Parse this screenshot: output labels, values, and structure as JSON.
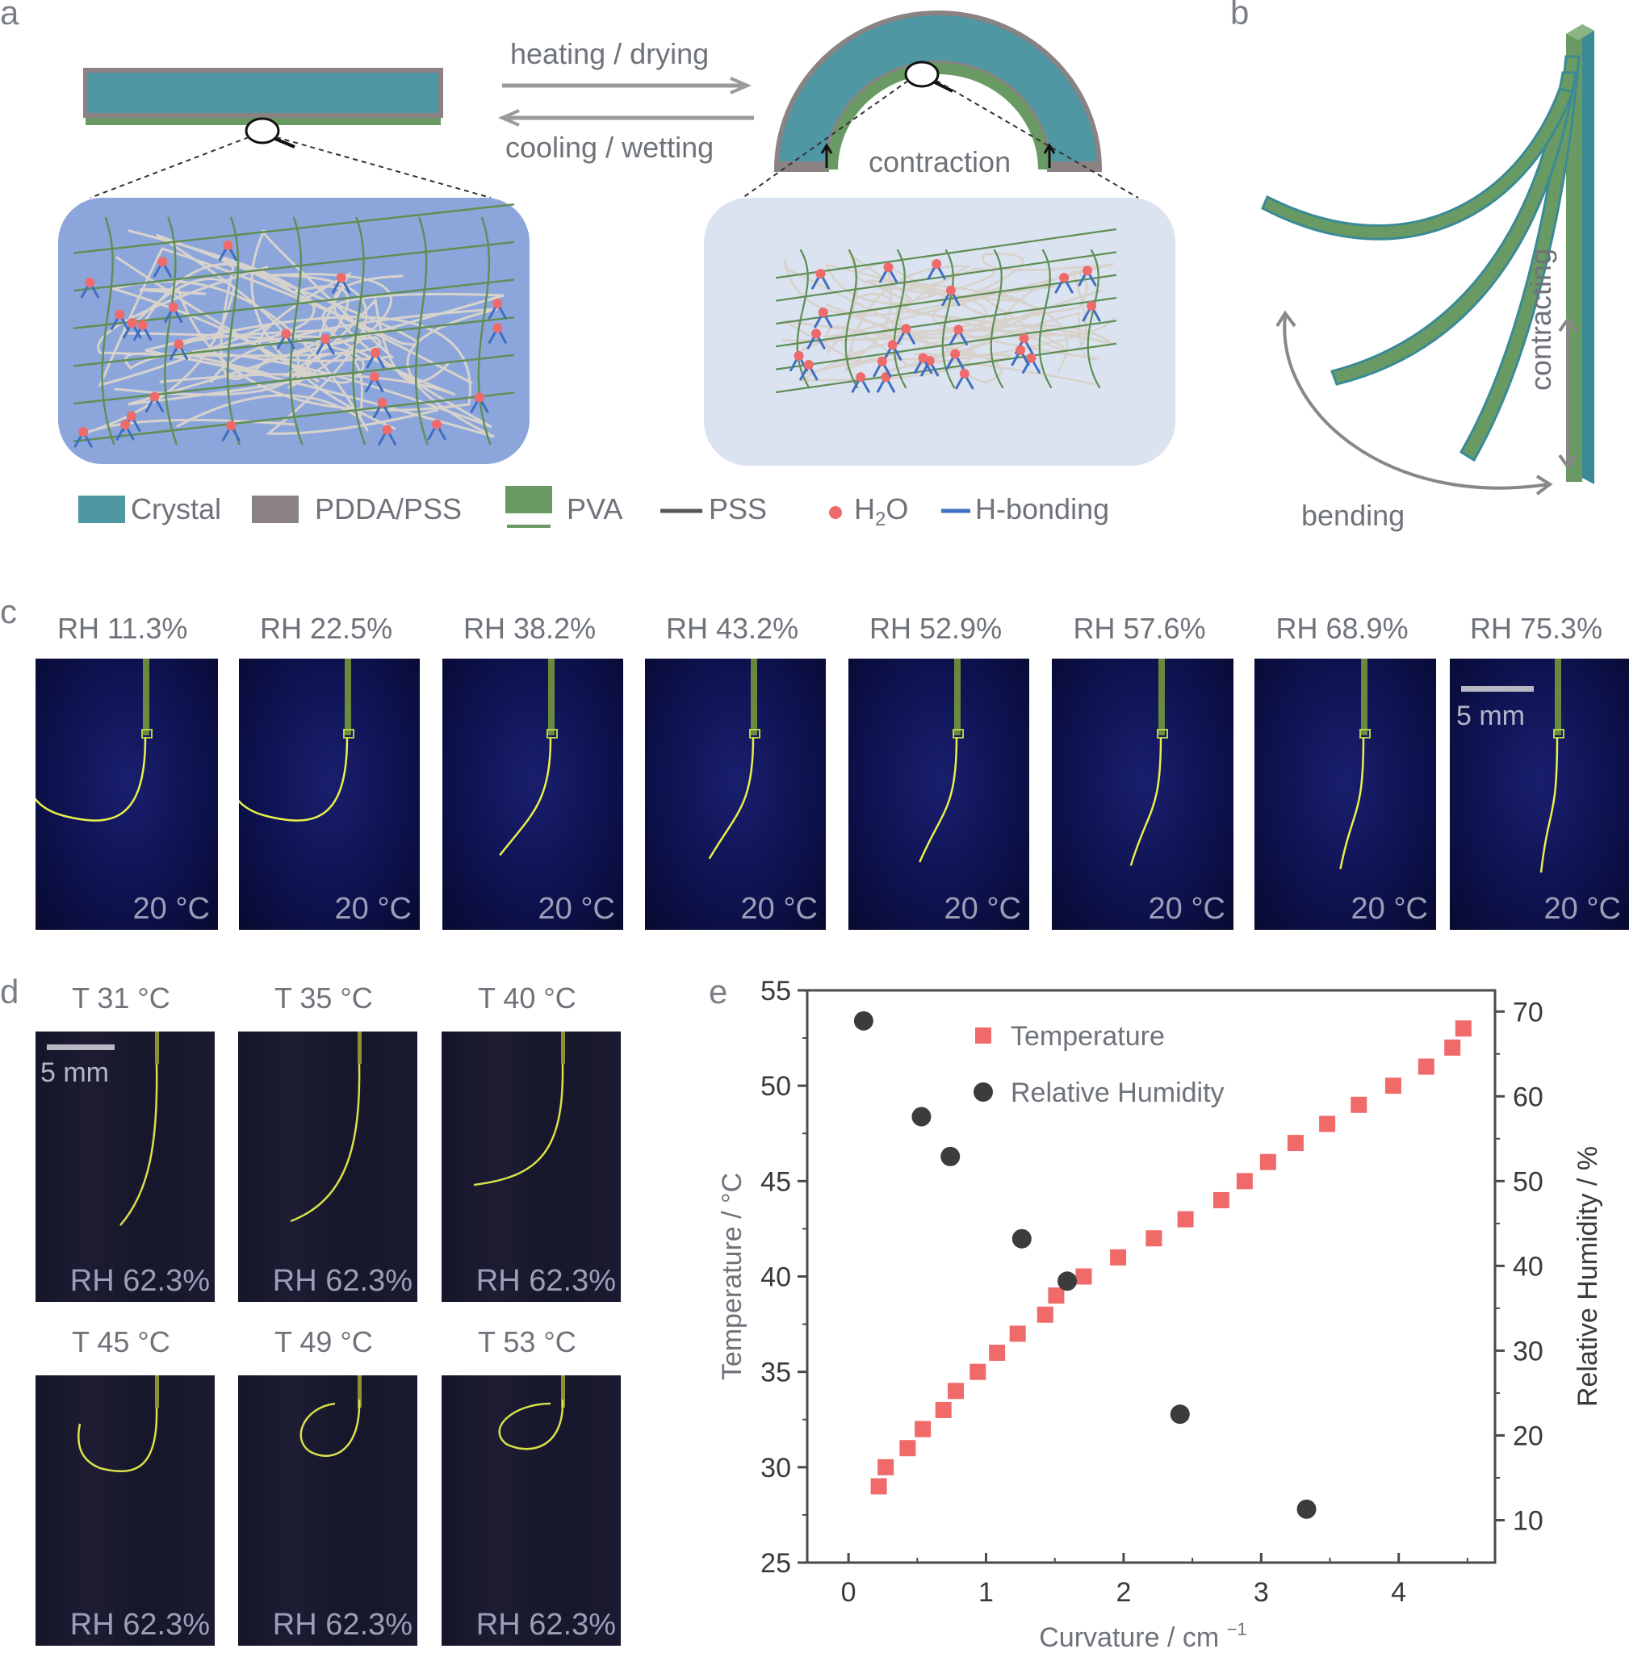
{
  "panel_labels": {
    "a": "a",
    "b": "b",
    "c": "c",
    "d": "d",
    "e": "e"
  },
  "panel_a": {
    "arrow_top": "heating / drying",
    "arrow_bottom": "cooling / wetting",
    "contraction": "contraction",
    "legend": {
      "crystal": "Crystal",
      "pdda_pss": "PDDA/PSS",
      "pva": "PVA",
      "pss": "PSS",
      "h2o_main": "H",
      "h2o_sub": "2",
      "h2o_tail": "O",
      "hbond": "H-bonding"
    },
    "colors": {
      "crystal": "#4f97a3",
      "pdda": "#8a8283",
      "pva": "#6a9a63",
      "water": "#ef6b6b",
      "hbond": "#3f6fc2"
    }
  },
  "panel_b": {
    "bending": "bending",
    "contracting": "contracting"
  },
  "panel_c": {
    "images": [
      {
        "rh": "RH 11.3%",
        "temp": "20 °C"
      },
      {
        "rh": "RH 22.5%",
        "temp": "20 °C"
      },
      {
        "rh": "RH 38.2%",
        "temp": "20 °C"
      },
      {
        "rh": "RH 43.2%",
        "temp": "20 °C"
      },
      {
        "rh": "RH 52.9%",
        "temp": "20 °C"
      },
      {
        "rh": "RH 57.6%",
        "temp": "20 °C"
      },
      {
        "rh": "RH 68.9%",
        "temp": "20 °C"
      },
      {
        "rh": "RH 75.3%",
        "temp": "20 °C"
      }
    ],
    "scale": "5 mm"
  },
  "panel_d": {
    "images": [
      {
        "t": "T 31 °C",
        "rh": "RH 62.3%"
      },
      {
        "t": "T 35 °C",
        "rh": "RH 62.3%"
      },
      {
        "t": "T 40 °C",
        "rh": "RH 62.3%"
      },
      {
        "t": "T 45 °C",
        "rh": "RH 62.3%"
      },
      {
        "t": "T 49 °C",
        "rh": "RH 62.3%"
      },
      {
        "t": "T 53 °C",
        "rh": "RH 62.3%"
      }
    ],
    "scale": "5 mm"
  },
  "chart_data": {
    "type": "scatter",
    "xlabel": "Curvature / cm",
    "xlabel_sup": "−1",
    "ylabel": "Temperature / °C",
    "y2label": "Relative Humidity / %",
    "xlim": [
      -0.3,
      4.7
    ],
    "ylim": [
      25,
      55
    ],
    "y2lim": [
      5,
      72.5
    ],
    "xticks": [
      0,
      1,
      2,
      3,
      4
    ],
    "yticks": [
      25,
      30,
      35,
      40,
      45,
      50,
      55
    ],
    "y2ticks": [
      10,
      20,
      30,
      40,
      50,
      60,
      70
    ],
    "grid": false,
    "legend_position": "top-right",
    "series": [
      {
        "name": "Temperature",
        "axis": "left",
        "marker": "square",
        "color": "#f06a6a",
        "x": [
          0.22,
          0.27,
          0.43,
          0.54,
          0.69,
          0.78,
          0.94,
          1.08,
          1.23,
          1.43,
          1.51,
          1.71,
          1.96,
          2.22,
          2.45,
          2.71,
          2.88,
          3.05,
          3.25,
          3.48,
          3.71,
          3.96,
          4.2,
          4.39,
          4.47
        ],
        "y": [
          29.0,
          30.0,
          31.0,
          32.0,
          33.0,
          34.0,
          35.0,
          36.0,
          37.0,
          38.0,
          39.0,
          40.0,
          41.0,
          42.0,
          43.0,
          44.0,
          45.0,
          46.0,
          47.0,
          48.0,
          49.0,
          50.0,
          51.0,
          52.0,
          53.0
        ]
      },
      {
        "name": "Relative Humidity",
        "axis": "right",
        "marker": "circle",
        "color": "#3c3c3c",
        "x": [
          0.11,
          0.53,
          0.74,
          1.26,
          1.59,
          2.41,
          3.33
        ],
        "y": [
          68.9,
          57.6,
          52.9,
          43.2,
          38.2,
          22.5,
          11.3
        ]
      }
    ]
  }
}
